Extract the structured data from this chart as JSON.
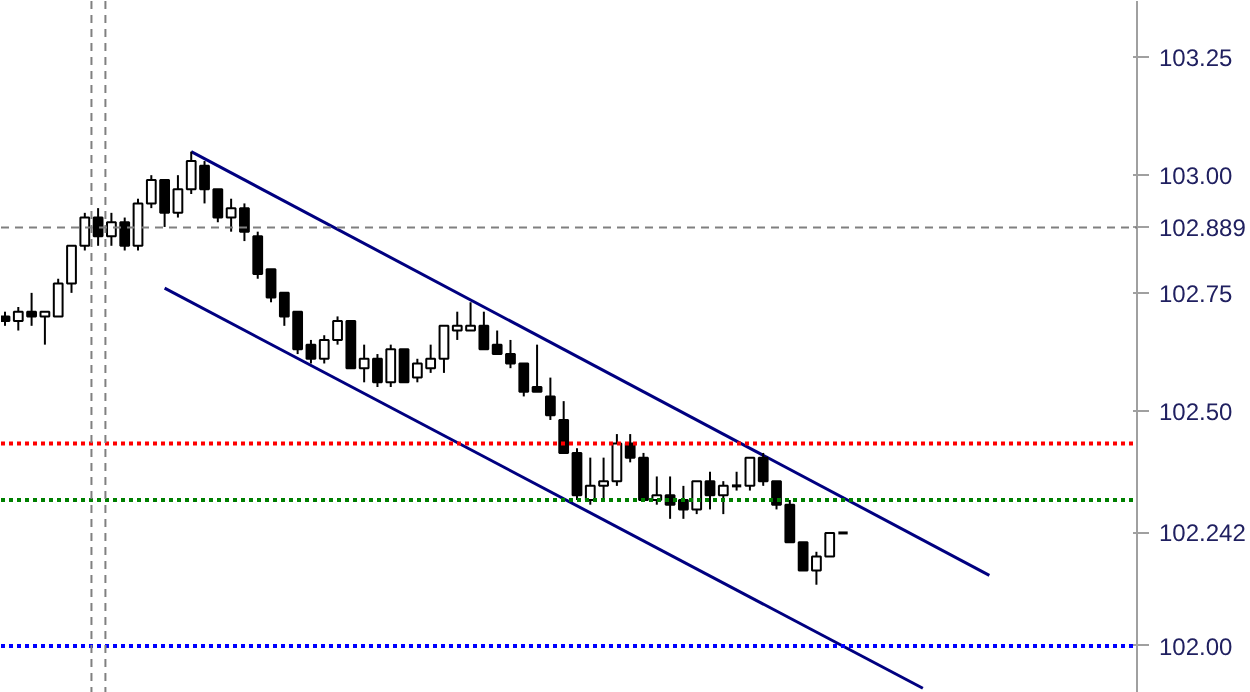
{
  "chart_data": {
    "type": "candlestick",
    "categories": [
      null,
      null,
      null,
      null,
      null,
      null,
      null,
      null,
      null,
      null,
      null,
      null,
      null,
      null,
      null,
      null,
      null,
      null,
      null,
      null,
      null,
      null,
      null,
      null,
      null,
      null,
      null,
      null,
      null,
      null,
      null,
      null,
      null,
      null,
      null,
      null,
      null,
      null,
      null,
      null,
      null,
      null,
      null,
      null,
      null,
      null,
      null,
      null,
      null,
      null,
      null,
      null,
      null,
      null,
      null,
      null,
      null,
      null,
      null,
      null,
      null,
      null,
      null,
      null,
      null,
      null,
      null,
      null,
      null,
      null,
      null,
      null,
      null,
      null,
      null,
      null,
      null,
      null,
      null,
      null,
      null,
      null,
      null,
      null,
      null,
      null
    ],
    "ohlc": [
      [
        102.7,
        102.71,
        102.68,
        102.69
      ],
      [
        102.69,
        102.72,
        102.67,
        102.71
      ],
      [
        102.71,
        102.75,
        102.68,
        102.7
      ],
      [
        102.7,
        102.71,
        102.64,
        102.71
      ],
      [
        102.7,
        102.78,
        102.7,
        102.77
      ],
      [
        102.77,
        102.85,
        102.75,
        102.85
      ],
      [
        102.85,
        102.92,
        102.84,
        102.91
      ],
      [
        102.91,
        102.93,
        102.85,
        102.87
      ],
      [
        102.87,
        102.92,
        102.85,
        102.9
      ],
      [
        102.9,
        102.91,
        102.84,
        102.85
      ],
      [
        102.85,
        102.95,
        102.84,
        102.94
      ],
      [
        102.94,
        103.0,
        102.93,
        102.99
      ],
      [
        102.99,
        102.99,
        102.89,
        102.92
      ],
      [
        102.92,
        103.0,
        102.91,
        102.97
      ],
      [
        102.97,
        103.05,
        102.96,
        103.03
      ],
      [
        103.02,
        103.03,
        102.94,
        102.97
      ],
      [
        102.97,
        102.97,
        102.9,
        102.91
      ],
      [
        102.91,
        102.95,
        102.88,
        102.93
      ],
      [
        102.93,
        102.94,
        102.86,
        102.88
      ],
      [
        102.87,
        102.88,
        102.78,
        102.79
      ],
      [
        102.8,
        102.8,
        102.73,
        102.74
      ],
      [
        102.75,
        102.75,
        102.68,
        102.7
      ],
      [
        102.71,
        102.71,
        102.62,
        102.63
      ],
      [
        102.64,
        102.65,
        102.6,
        102.61
      ],
      [
        102.61,
        102.66,
        102.6,
        102.65
      ],
      [
        102.65,
        102.7,
        102.64,
        102.69
      ],
      [
        102.69,
        102.69,
        102.59,
        102.59
      ],
      [
        102.59,
        102.64,
        102.56,
        102.61
      ],
      [
        102.61,
        102.62,
        102.55,
        102.56
      ],
      [
        102.56,
        102.64,
        102.55,
        102.63
      ],
      [
        102.63,
        102.63,
        102.56,
        102.56
      ],
      [
        102.57,
        102.61,
        102.56,
        102.6
      ],
      [
        102.59,
        102.64,
        102.58,
        102.61
      ],
      [
        102.61,
        102.68,
        102.58,
        102.68
      ],
      [
        102.67,
        102.71,
        102.65,
        102.68
      ],
      [
        102.67,
        102.73,
        102.67,
        102.68
      ],
      [
        102.68,
        102.71,
        102.63,
        102.63
      ],
      [
        102.64,
        102.67,
        102.62,
        102.62
      ],
      [
        102.62,
        102.65,
        102.59,
        102.6
      ],
      [
        102.6,
        102.6,
        102.53,
        102.54
      ],
      [
        102.55,
        102.64,
        102.54,
        102.54
      ],
      [
        102.53,
        102.57,
        102.48,
        102.49
      ],
      [
        102.48,
        102.52,
        102.41,
        102.41
      ],
      [
        102.41,
        102.42,
        102.31,
        102.32
      ],
      [
        102.31,
        102.4,
        102.3,
        102.34
      ],
      [
        102.34,
        102.4,
        102.31,
        102.35
      ],
      [
        102.35,
        102.45,
        102.34,
        102.43
      ],
      [
        102.43,
        102.45,
        102.39,
        102.4
      ],
      [
        102.4,
        102.41,
        102.31,
        102.31
      ],
      [
        102.31,
        102.36,
        102.3,
        102.32
      ],
      [
        102.32,
        102.36,
        102.27,
        102.3
      ],
      [
        102.31,
        102.34,
        102.27,
        102.29
      ],
      [
        102.29,
        102.35,
        102.28,
        102.35
      ],
      [
        102.35,
        102.37,
        102.29,
        102.32
      ],
      [
        102.32,
        102.35,
        102.28,
        102.34
      ],
      [
        102.34,
        102.37,
        102.33,
        102.34
      ],
      [
        102.34,
        102.4,
        102.33,
        102.4
      ],
      [
        102.4,
        102.41,
        102.34,
        102.35
      ],
      [
        102.35,
        102.35,
        102.29,
        102.3
      ],
      [
        102.3,
        102.31,
        102.22,
        102.22
      ],
      [
        102.22,
        102.22,
        102.16,
        102.16
      ],
      [
        102.16,
        102.2,
        102.13,
        102.19
      ],
      [
        102.19,
        102.24,
        102.19,
        102.24
      ],
      [
        102.24,
        102.24,
        102.24,
        102.24
      ],
      null,
      null,
      null,
      null,
      null,
      null,
      null,
      null,
      null,
      null,
      null,
      null,
      null,
      null,
      null,
      null,
      null,
      null,
      null,
      null,
      null,
      null
    ],
    "series": [
      {
        "type": "line",
        "color": "#000080",
        "values": [
          null,
          null,
          null,
          null,
          null,
          null,
          null,
          null,
          null,
          null,
          null,
          null,
          null,
          null,
          103.05,
          null,
          null,
          null,
          null,
          null,
          null,
          null,
          null,
          null,
          null,
          null,
          null,
          null,
          null,
          null,
          null,
          null,
          null,
          null,
          null,
          null,
          null,
          null,
          null,
          null,
          null,
          null,
          null,
          null,
          null,
          null,
          null,
          null,
          null,
          null,
          null,
          null,
          null,
          null,
          null,
          null,
          null,
          null,
          null,
          null,
          null,
          null,
          null,
          null,
          null,
          null,
          null,
          null,
          null,
          null,
          null,
          null,
          null,
          null,
          102.15,
          null,
          null,
          null,
          null,
          null,
          null,
          null,
          null,
          null,
          null,
          null
        ]
      },
      {
        "type": "line",
        "color": "#000080",
        "values": [
          null,
          null,
          null,
          null,
          null,
          null,
          null,
          null,
          null,
          null,
          null,
          null,
          102.76,
          null,
          null,
          null,
          null,
          null,
          null,
          null,
          null,
          null,
          null,
          null,
          null,
          null,
          null,
          null,
          null,
          null,
          null,
          null,
          null,
          null,
          null,
          null,
          null,
          null,
          null,
          null,
          null,
          null,
          null,
          null,
          null,
          null,
          null,
          null,
          null,
          null,
          null,
          null,
          null,
          null,
          null,
          null,
          null,
          null,
          null,
          null,
          null,
          null,
          null,
          null,
          null,
          null,
          null,
          null,
          null,
          101.91,
          null,
          null,
          null,
          null,
          null,
          null,
          null,
          null,
          null,
          null,
          null,
          null,
          null,
          null,
          null,
          null
        ]
      }
    ],
    "ylim": [
      101.9,
      103.37
    ],
    "yticks": [
      {
        "value": 103.25,
        "label": "103.25"
      },
      {
        "value": 103.0,
        "label": "103.00"
      },
      102.889,
      {
        "value": 102.75,
        "label": "102.75"
      },
      {
        "value": 102.5,
        "label": "102.50"
      },
      102.242,
      {
        "value": 102.0,
        "label": "102.00"
      }
    ],
    "ref_lines": [
      {
        "axis": "y",
        "value": 102.889,
        "color": "#808080",
        "line_style": "dashed"
      },
      {
        "axis": "y",
        "value": 102.43,
        "color": "#ff0000",
        "line_style": "dotted"
      },
      {
        "axis": "y",
        "value": 102.31,
        "color": "#008000",
        "line_style": "dotted"
      },
      {
        "axis": "y",
        "value": 102.0,
        "color": "#0000ff",
        "line_style": "dotted"
      }
    ],
    "grid": false,
    "tick_labels": "y"
  }
}
